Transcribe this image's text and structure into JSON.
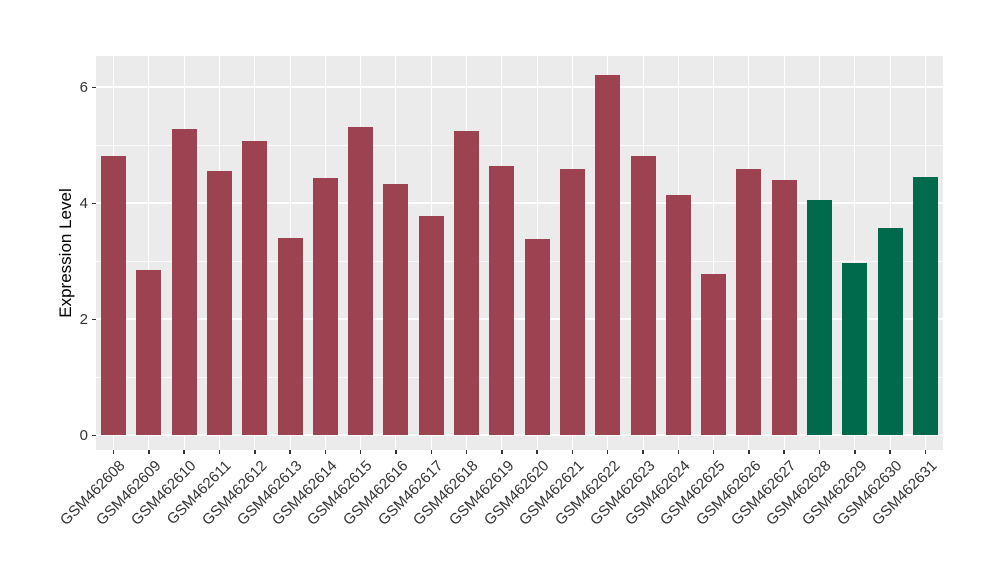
{
  "chart_data": {
    "type": "bar",
    "title": "",
    "xlabel": "",
    "ylabel": "Expression Level",
    "categories": [
      "GSM462608",
      "GSM462609",
      "GSM462610",
      "GSM462611",
      "GSM462612",
      "GSM462613",
      "GSM462614",
      "GSM462615",
      "GSM462616",
      "GSM462617",
      "GSM462618",
      "GSM462619",
      "GSM462620",
      "GSM462621",
      "GSM462622",
      "GSM462623",
      "GSM462624",
      "GSM462625",
      "GSM462626",
      "GSM462627",
      "GSM462628",
      "GSM462629",
      "GSM462630",
      "GSM462631"
    ],
    "values": [
      4.82,
      2.85,
      5.28,
      4.56,
      5.08,
      3.4,
      4.43,
      5.31,
      4.33,
      3.78,
      5.25,
      4.64,
      3.39,
      4.6,
      6.22,
      4.81,
      4.14,
      2.78,
      4.6,
      4.41,
      4.06,
      2.98,
      3.57,
      4.45
    ],
    "highlighted_categories": [
      "GSM462628",
      "GSM462629",
      "GSM462630",
      "GSM462631"
    ],
    "group_colors": {
      "default": "#9D4251",
      "highlighted": "#006A4C"
    },
    "yticks": [
      0,
      2,
      4,
      6
    ],
    "ytick_labels": [
      "0",
      "2",
      "4",
      "6"
    ],
    "minor_gridlines": [
      1,
      3,
      5
    ],
    "ylim": [
      -0.25,
      6.54
    ],
    "grid": true,
    "legend": "none",
    "colors": {
      "panel_background": "#EBEBEB",
      "grid": "#FFFFFF",
      "tick": "#333333",
      "axis_text": "#333333",
      "axis_title": "#000000"
    }
  }
}
